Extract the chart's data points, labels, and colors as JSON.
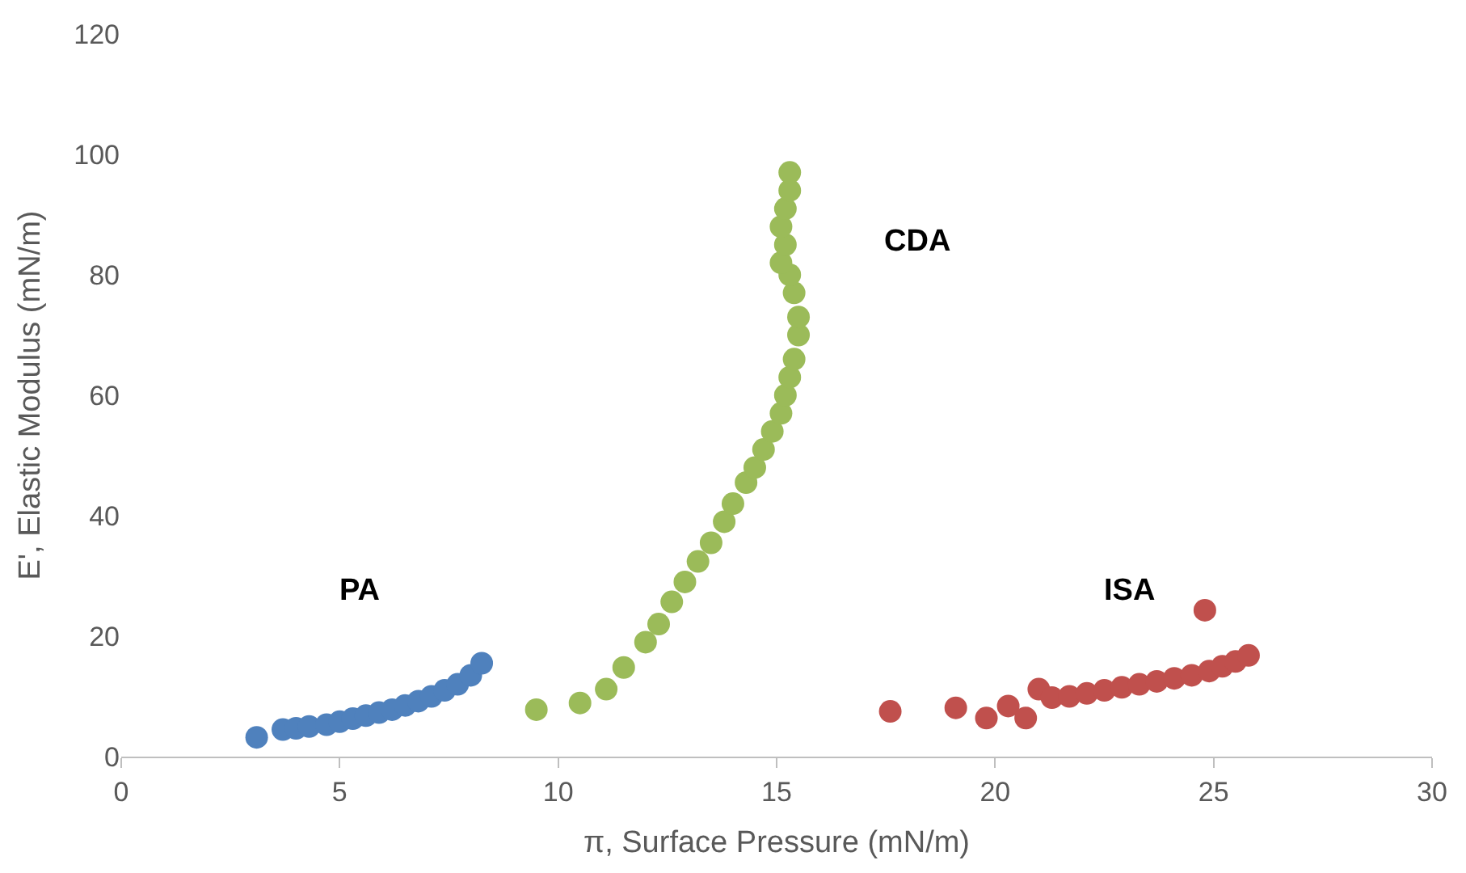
{
  "chart_data": {
    "type": "scatter",
    "xlabel": "π, Surface Pressure (mN/m)",
    "ylabel": "E', Elastic Modulus (mN/m)",
    "xlim": [
      0,
      30
    ],
    "xticks": [
      0,
      5,
      10,
      15,
      20,
      25,
      30
    ],
    "ylim": [
      0,
      120
    ],
    "yticks": [
      0,
      20,
      40,
      60,
      80,
      100,
      120
    ],
    "grid": false,
    "legend": false,
    "marker": "circle",
    "series": [
      {
        "name": "PA",
        "color": "#4f81bd",
        "x": [
          3.1,
          3.7,
          4.0,
          4.3,
          4.7,
          5.0,
          5.3,
          5.6,
          5.9,
          6.2,
          6.5,
          6.8,
          7.1,
          7.4,
          7.7,
          8.0,
          8.25
        ],
        "values": [
          3.2,
          4.5,
          4.7,
          5,
          5.3,
          5.8,
          6.3,
          6.8,
          7.3,
          7.8,
          8.5,
          9.2,
          10,
          11,
          12,
          13.5,
          15.5
        ]
      },
      {
        "name": "CDA",
        "color": "#9bbb59",
        "x": [
          9.5,
          10.5,
          11.1,
          11.5,
          12.0,
          12.3,
          12.6,
          12.9,
          13.2,
          13.5,
          13.8,
          14.0,
          14.3,
          14.5,
          14.7,
          14.9,
          15.1,
          15.2,
          15.3,
          15.4,
          15.5,
          15.5,
          15.4,
          15.3,
          15.1,
          15.2,
          15.1,
          15.2,
          15.3,
          15.3
        ],
        "values": [
          7.8,
          8.9,
          11.2,
          14.8,
          19,
          22,
          25.7,
          29,
          32.4,
          35.5,
          39,
          42,
          45.5,
          48,
          51,
          54,
          57,
          60,
          63,
          66,
          70,
          73,
          77,
          80,
          82,
          85,
          88,
          91,
          94,
          97
        ]
      },
      {
        "name": "ISA",
        "color": "#c0504d",
        "x": [
          17.6,
          19.1,
          19.8,
          20.3,
          20.7,
          21.0,
          21.3,
          21.7,
          22.1,
          22.5,
          22.9,
          23.3,
          23.7,
          24.1,
          24.5,
          24.9,
          25.2,
          25.5,
          25.8,
          24.8
        ],
        "values": [
          7.5,
          8.1,
          6.4,
          8.4,
          6.4,
          11.2,
          9.8,
          10,
          10.5,
          11,
          11.5,
          12,
          12.5,
          13,
          13.5,
          14.2,
          15,
          15.8,
          16.8,
          24.3
        ]
      }
    ]
  }
}
